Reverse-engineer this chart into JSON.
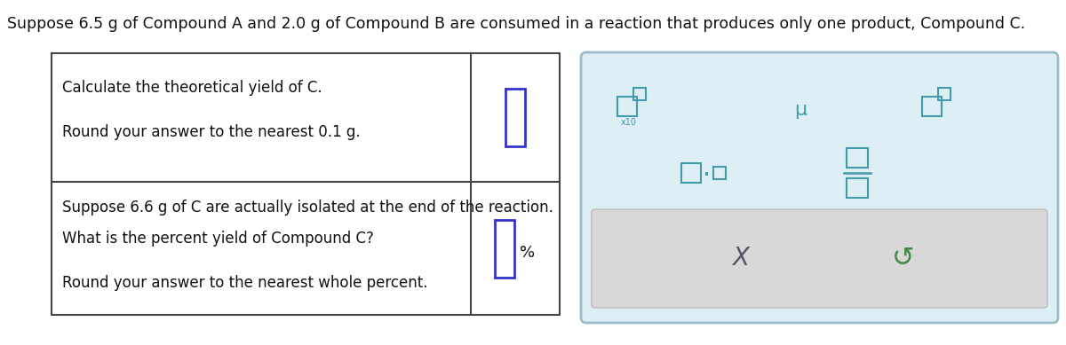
{
  "title": "Suppose 6.5 g of Compound A and 2.0 g of Compound B are consumed in a reaction that produces only one product, Compound C.",
  "title_fontsize": 12.5,
  "bg_color": "#ffffff",
  "row1_text_line1": "Calculate the theoretical yield of C.",
  "row1_text_line2": "Round your answer to the nearest 0.1 g.",
  "row2_text_line1": "Suppose 6.6 g of C are actually isolated at the end of the reaction.",
  "row2_text_line2": "What is the percent yield of Compound C?",
  "row2_text_line3": "Round your answer to the nearest whole percent.",
  "input_box_color": "#3333cc",
  "percent_label": "%",
  "panel_bg": "#ddeef5",
  "panel_border": "#99bbcc",
  "symbol_color": "#4499aa",
  "button_bg": "#d8d8d8",
  "button_border": "#bbbbbb",
  "x_color": "#555566",
  "undo_color": "#448844",
  "text_color": "#111111",
  "table_border_color": "#444444"
}
